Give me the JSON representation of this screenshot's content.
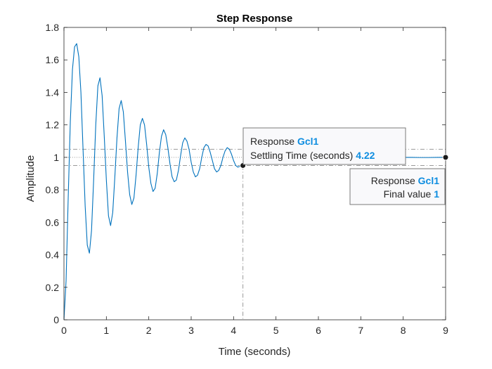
{
  "chart_data": {
    "type": "line",
    "title": "Step Response",
    "xlabel": "Time (seconds)",
    "ylabel": "Amplitude",
    "xlim": [
      0,
      9
    ],
    "ylim": [
      0,
      1.8
    ],
    "x_ticks": [
      0,
      1,
      2,
      3,
      4,
      5,
      6,
      7,
      8,
      9
    ],
    "y_ticks": [
      0,
      0.2,
      0.4,
      0.6,
      0.8,
      1,
      1.2,
      1.4,
      1.6,
      1.8
    ],
    "grid": false,
    "series": [
      {
        "name": "Gcl1",
        "color": "#0072bd",
        "x": [
          0,
          0.05,
          0.1,
          0.15,
          0.2,
          0.25,
          0.3,
          0.35,
          0.4,
          0.45,
          0.5,
          0.55,
          0.6,
          0.65,
          0.7,
          0.75,
          0.8,
          0.85,
          0.9,
          0.95,
          1.0,
          1.05,
          1.1,
          1.15,
          1.2,
          1.25,
          1.3,
          1.35,
          1.4,
          1.45,
          1.5,
          1.55,
          1.6,
          1.65,
          1.7,
          1.75,
          1.8,
          1.85,
          1.9,
          1.95,
          2.0,
          2.05,
          2.1,
          2.15,
          2.2,
          2.25,
          2.3,
          2.35,
          2.4,
          2.45,
          2.5,
          2.55,
          2.6,
          2.65,
          2.7,
          2.75,
          2.8,
          2.85,
          2.9,
          2.95,
          3.0,
          3.05,
          3.1,
          3.15,
          3.2,
          3.25,
          3.3,
          3.35,
          3.4,
          3.45,
          3.5,
          3.55,
          3.6,
          3.65,
          3.7,
          3.75,
          3.8,
          3.85,
          3.9,
          3.95,
          4.0,
          4.05,
          4.1,
          4.15,
          4.2,
          4.25,
          4.3,
          4.4,
          4.5,
          4.6,
          4.7,
          4.8,
          4.9,
          5.0,
          5.2,
          5.4,
          5.6,
          5.8,
          6.0,
          6.2,
          6.4,
          6.6,
          6.8,
          7.0,
          7.2,
          7.4,
          7.6,
          7.8,
          8.0,
          8.2,
          8.4,
          8.6,
          8.8,
          9.0
        ],
        "y": [
          0,
          0.24,
          0.75,
          1.22,
          1.54,
          1.68,
          1.7,
          1.62,
          1.4,
          1.05,
          0.7,
          0.46,
          0.41,
          0.55,
          0.86,
          1.2,
          1.44,
          1.49,
          1.38,
          1.13,
          0.86,
          0.64,
          0.58,
          0.66,
          0.88,
          1.12,
          1.3,
          1.35,
          1.28,
          1.1,
          0.91,
          0.77,
          0.71,
          0.75,
          0.89,
          1.06,
          1.2,
          1.24,
          1.2,
          1.08,
          0.94,
          0.84,
          0.79,
          0.81,
          0.9,
          1.03,
          1.13,
          1.17,
          1.14,
          1.06,
          0.96,
          0.88,
          0.85,
          0.86,
          0.92,
          1.01,
          1.09,
          1.12,
          1.1,
          1.05,
          0.97,
          0.91,
          0.88,
          0.89,
          0.93,
          1.0,
          1.06,
          1.08,
          1.07,
          1.03,
          0.98,
          0.93,
          0.91,
          0.92,
          0.95,
          1.0,
          1.04,
          1.06,
          1.05,
          1.02,
          0.98,
          0.95,
          0.94,
          0.945,
          0.96,
          0.98,
          1.0,
          1.01,
          1.005,
          0.995,
          0.99,
          0.995,
          1.0,
          1.003,
          1.002,
          0.998,
          0.997,
          1.0,
          1.002,
          1.001,
          0.999,
          0.998,
          1.0,
          1.001,
          1.001,
          0.999,
          0.999,
          1.0,
          1.0,
          1.0,
          0.999,
          0.999,
          1.0,
          1.0
        ]
      }
    ],
    "settling_band": [
      0.95,
      1.05
    ],
    "final_value": 1,
    "markers": [
      {
        "x": 4.22,
        "y": 0.95
      },
      {
        "x": 9,
        "y": 1.0
      }
    ],
    "datatips": [
      {
        "line1_label": "Response",
        "line1_value": "Gcl1",
        "line2_label": "Settling Time (seconds)",
        "line2_value": "4.22"
      },
      {
        "line1_label": "Response",
        "line1_value": "Gcl1",
        "line2_label": "Final value",
        "line2_value": "1"
      }
    ]
  }
}
